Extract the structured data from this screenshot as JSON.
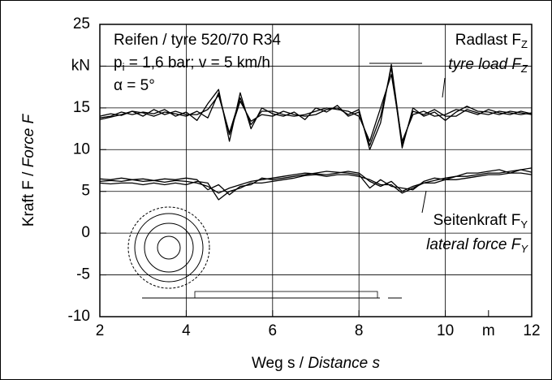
{
  "chart_data": {
    "type": "line",
    "x": [
      2,
      2.25,
      2.5,
      2.75,
      3,
      3.25,
      3.5,
      3.75,
      4,
      4.25,
      4.5,
      4.75,
      5,
      5.25,
      5.5,
      5.75,
      6,
      6.25,
      6.5,
      6.75,
      7,
      7.25,
      7.5,
      7.75,
      8,
      8.25,
      8.5,
      8.75,
      9,
      9.25,
      9.5,
      9.75,
      10,
      10.25,
      10.5,
      10.75,
      11,
      11.25,
      11.5,
      11.75,
      12
    ],
    "series": [
      {
        "color": "#000",
        "values": [
          13.8,
          14,
          14.5,
          14.2,
          14.5,
          14.3,
          14.8,
          14,
          14.5,
          13.5,
          15.5,
          17.2,
          11,
          16.8,
          12.5,
          15,
          14.3,
          14,
          14.5,
          13.6,
          15,
          14.5,
          15.3,
          14,
          14.5,
          10.5,
          14,
          19.8,
          10.2,
          15,
          14,
          14.5,
          13.5,
          14.5,
          15.2,
          14.6,
          14.5,
          14.2,
          14.6,
          14.4,
          14.2
        ]
      },
      {
        "color": "#000",
        "values": [
          14,
          14.3,
          14.1,
          14.6,
          14,
          14.8,
          14.2,
          14.6,
          14.2,
          14.2,
          14.8,
          16.5,
          12,
          16.2,
          13,
          14.6,
          14.6,
          14.2,
          14,
          14.2,
          14.6,
          15,
          14.8,
          14.6,
          14,
          11,
          15,
          19,
          11,
          14.2,
          14.6,
          14,
          14.2,
          14.8,
          14.6,
          14.2,
          14.8,
          14.4,
          14.2,
          14.6,
          14.3
        ]
      },
      {
        "color": "#000",
        "values": [
          13.6,
          13.9,
          14.2,
          14.6,
          14.4,
          14,
          14.5,
          14.3,
          14,
          14.6,
          13.8,
          16.8,
          11.8,
          15.8,
          13.4,
          14.2,
          14,
          14.6,
          14.2,
          14,
          14.2,
          14.8,
          15,
          14.2,
          14.8,
          10,
          13.2,
          20.2,
          10.6,
          14.6,
          14.2,
          14.8,
          14,
          14,
          14.8,
          14.4,
          14.2,
          14.6,
          14.4,
          14.2,
          14.4
        ]
      },
      {
        "color": "#000",
        "values": [
          6.2,
          6.3,
          6.2,
          6.4,
          6.2,
          6.3,
          6.1,
          6.3,
          6.2,
          6,
          5.6,
          4.8,
          5.4,
          5.8,
          6.2,
          6.4,
          6.6,
          6.8,
          7,
          7.2,
          7.1,
          7,
          7.2,
          7.4,
          7.2,
          6.2,
          5.6,
          6.2,
          5,
          5.6,
          6,
          6.3,
          6.6,
          6.8,
          6.8,
          7,
          7.2,
          7.2,
          7.4,
          7.6,
          7.3
        ]
      },
      {
        "color": "#000",
        "values": [
          6.5,
          6.4,
          6.6,
          6.4,
          6.5,
          6.3,
          6.5,
          6.4,
          6.6,
          6.4,
          5.2,
          5.8,
          4.6,
          5.6,
          5.8,
          6.6,
          6.4,
          6.6,
          6.8,
          7,
          7.2,
          7.4,
          7.3,
          7.2,
          7,
          5.4,
          6.4,
          5.6,
          5.4,
          5.2,
          6.2,
          6.6,
          6.4,
          6.8,
          7.2,
          7.2,
          7.4,
          7.6,
          7.2,
          7.6,
          7.8
        ]
      },
      {
        "color": "#000",
        "values": [
          6,
          5.9,
          6,
          6,
          5.8,
          6,
          5.8,
          6,
          5.8,
          6.2,
          6,
          4,
          5,
          5.4,
          6,
          6,
          6.2,
          6.4,
          6.6,
          6.9,
          7,
          6.8,
          7,
          7,
          6.8,
          6.4,
          5.8,
          5.8,
          4.8,
          5.4,
          6,
          6,
          6.4,
          6.4,
          6.6,
          6.8,
          7,
          7,
          7.2,
          7.2,
          7
        ]
      }
    ],
    "xlim": [
      2,
      12
    ],
    "ylim": [
      -10,
      25
    ],
    "xticks": [
      2,
      4,
      6,
      8,
      10,
      {
        "value": 11,
        "label": "m"
      },
      12
    ],
    "yticks": [
      -10,
      -5,
      0,
      5,
      10,
      15,
      {
        "value": 20,
        "label": "kN"
      },
      25
    ],
    "grid": true,
    "xlabel": [
      "Weg s / ",
      "Distance s"
    ],
    "ylabel": [
      "Kraft F / ",
      "Force F"
    ],
    "annotations": [
      {
        "text": "Reifen / tyre 520/70 R34"
      },
      {
        "text": "p",
        "sub": "i",
        "after": " = 1,6 bar; v = 5 km/h"
      },
      {
        "text": "α = 5°"
      },
      {
        "text": "Radlast F",
        "sub": "Z"
      },
      {
        "text": "tyre load F",
        "sub": "Z",
        "italic": true
      },
      {
        "text": "Seitenkraft F",
        "sub": "Y"
      },
      {
        "text": "lateral force F",
        "sub": "Y",
        "italic": true
      }
    ]
  }
}
